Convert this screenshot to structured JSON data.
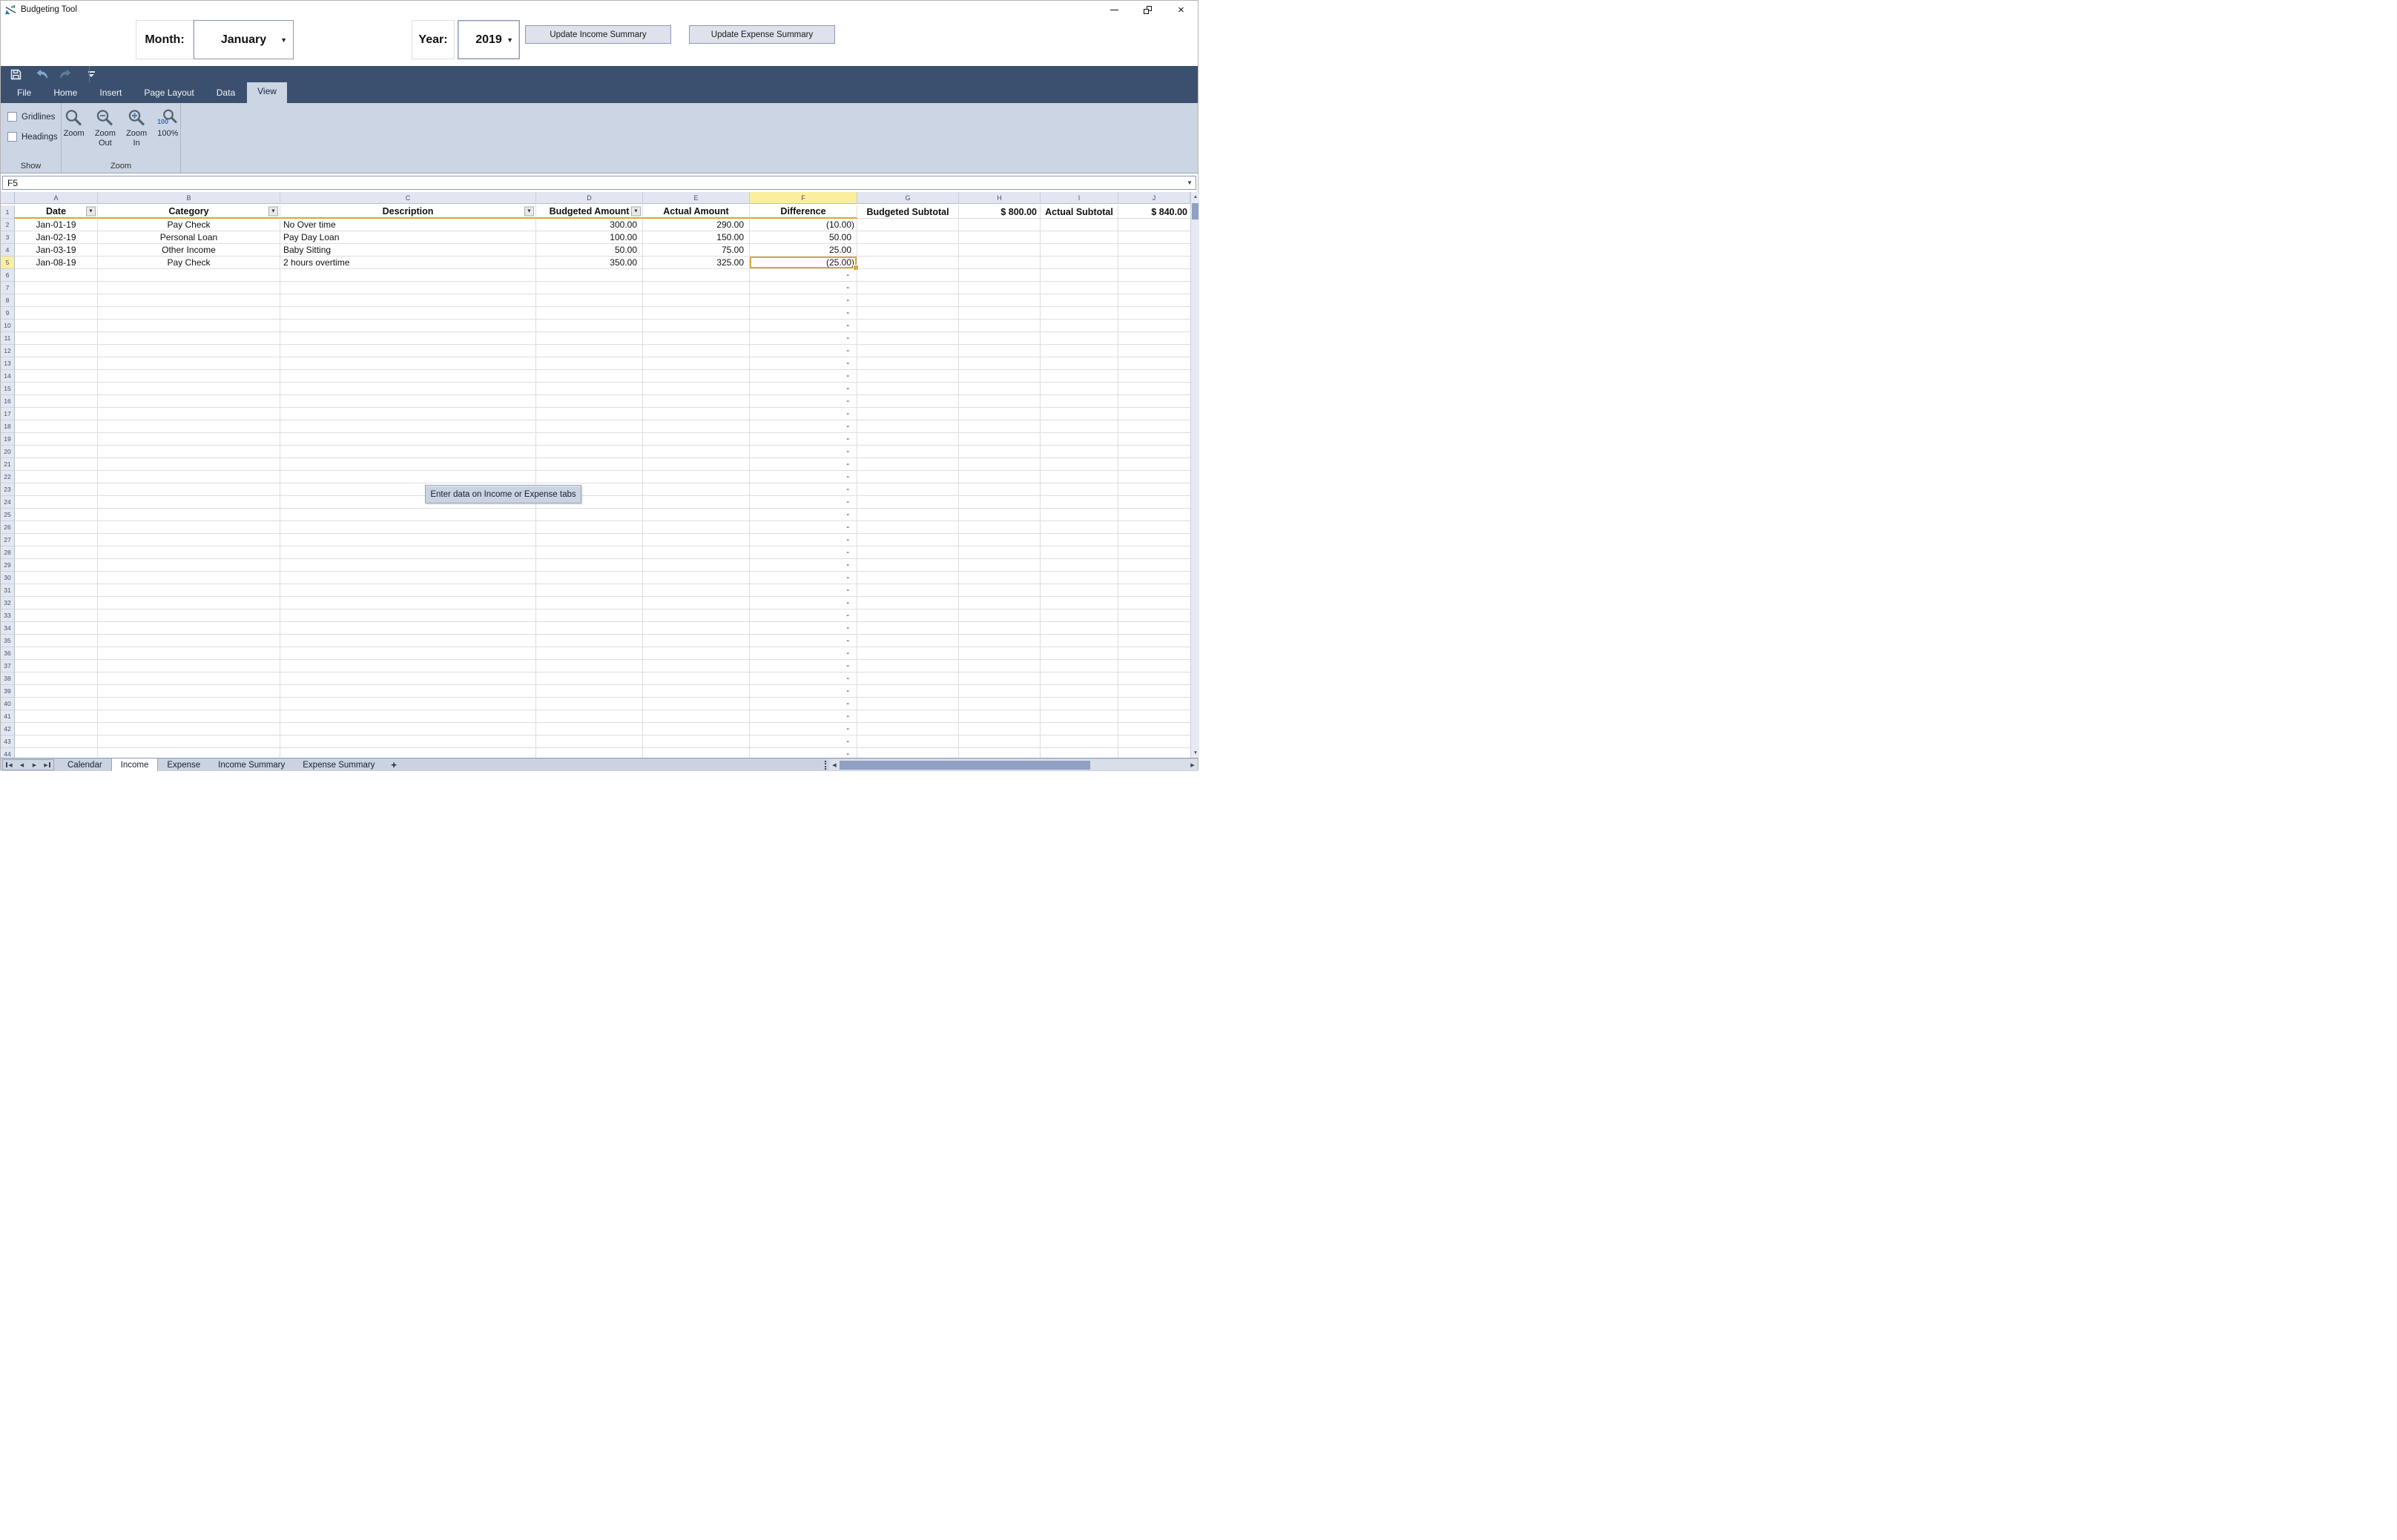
{
  "window": {
    "title": "Budgeting Tool",
    "controls": {
      "minimize": "minimize-icon",
      "restore": "restore-icon",
      "close": "close-icon"
    }
  },
  "glyphs": {
    "up": "▲",
    "down": "▼",
    "left": "◀",
    "right": "▶",
    "caret": "▼",
    "filter": "▼",
    "close": "×",
    "add": "+"
  },
  "topbar": {
    "month_label": "Month:",
    "month_value": "January",
    "year_label": "Year:",
    "year_value": "2019",
    "update_income_button": "Update Income Summary",
    "update_expense_button": "Update Expense Summary"
  },
  "toolbar_icons": [
    "save-icon",
    "undo-icon",
    "redo-icon",
    "customize-quick-access-icon"
  ],
  "ribbon_tabs": [
    {
      "label": "File"
    },
    {
      "label": "Home"
    },
    {
      "label": "Insert"
    },
    {
      "label": "Page Layout"
    },
    {
      "label": "Data"
    },
    {
      "label": "View",
      "active": true
    }
  ],
  "ribbon": {
    "show_group": {
      "label": "Show",
      "checkboxes": [
        {
          "label": "Gridlines",
          "checked": false
        },
        {
          "label": "Headings",
          "checked": false
        }
      ]
    },
    "zoom_group": {
      "label": "Zoom",
      "buttons": [
        {
          "lines": [
            "Zoom",
            ""
          ],
          "variant": "plain"
        },
        {
          "lines": [
            "Zoom",
            "Out"
          ],
          "variant": "minus"
        },
        {
          "lines": [
            "Zoom",
            "In"
          ],
          "variant": "plus"
        },
        {
          "lines": [
            "100%",
            ""
          ],
          "variant": "hundred",
          "badge": "100"
        }
      ]
    }
  },
  "name_box": {
    "value": "F5"
  },
  "sheet": {
    "column_letters": [
      "A",
      "B",
      "C",
      "D",
      "E",
      "F",
      "G",
      "H",
      "I",
      "J"
    ],
    "selected_column": "F",
    "selected_row": 5,
    "selected_cell": "F5",
    "header_row": {
      "number": "1",
      "cells": [
        {
          "text": "Date",
          "filter": true
        },
        {
          "text": "Category",
          "filter": true
        },
        {
          "text": "Description",
          "filter": true
        },
        {
          "text": "Budgeted Amount",
          "filter": true
        },
        {
          "text": "Actual Amount"
        },
        {
          "text": "Difference"
        },
        {
          "text": "Budgeted Subtotal"
        },
        {
          "text": "$ 800.00",
          "align": "right"
        },
        {
          "text": "Actual Subtotal"
        },
        {
          "text": "$ 840.00",
          "align": "right"
        }
      ]
    },
    "rows": [
      {
        "number": 2,
        "date": "Jan-01-19",
        "category": "Pay Check",
        "description": "No Over time",
        "budgeted": "300.00",
        "actual": "290.00",
        "difference": "(10.00)"
      },
      {
        "number": 3,
        "date": "Jan-02-19",
        "category": "Personal Loan",
        "description": "Pay Day Loan",
        "budgeted": "100.00",
        "actual": "150.00",
        "difference": "50.00"
      },
      {
        "number": 4,
        "date": "Jan-03-19",
        "category": "Other Income",
        "description": "Baby Sitting",
        "budgeted": "50.00",
        "actual": "75.00",
        "difference": "25.00"
      },
      {
        "number": 5,
        "date": "Jan-08-19",
        "category": "Pay Check",
        "description": "2 hours overtime",
        "budgeted": "350.00",
        "actual": "325.00",
        "difference": "(25.00)",
        "selected": true
      }
    ],
    "empty_rows": {
      "from": 6,
      "to": 44,
      "difference_placeholder": "-"
    },
    "overlay_note": "Enter data on Income or Expense tabs"
  },
  "sheet_tabs": {
    "tabs": [
      {
        "label": "Calendar"
      },
      {
        "label": "Income",
        "active": true
      },
      {
        "label": "Expense"
      },
      {
        "label": "Income Summary"
      },
      {
        "label": "Expense Summary"
      }
    ],
    "add_label": "+"
  },
  "colors": {
    "navy_bar": "#3b506e",
    "ribbon_bg": "#ccd5e3",
    "selection_gold": "#d4ac45",
    "header_underline_gold": "#d9a826",
    "selected_header_yellow": "#fbee9e",
    "scroll_thumb": "#8fa0c2",
    "accent_blue": "#2e75b6"
  }
}
